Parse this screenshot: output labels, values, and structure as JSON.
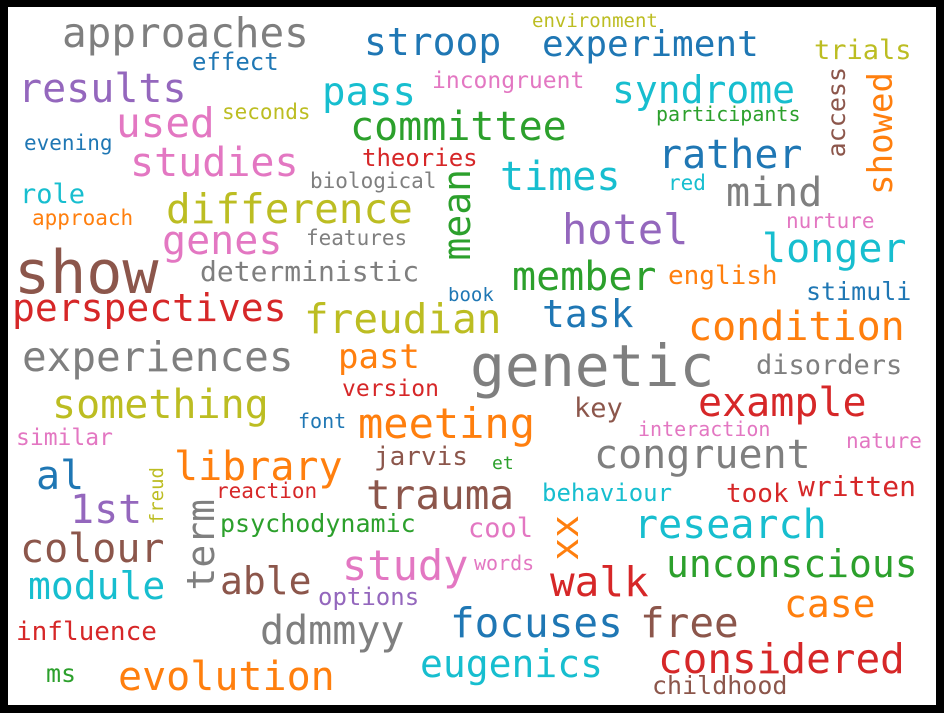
{
  "words": {
    "w001": {
      "text": "approaches",
      "color": "#7f7f7f"
    },
    "w002": {
      "text": "stroop",
      "color": "#1f77b4"
    },
    "w003": {
      "text": "experiment",
      "color": "#1f77b4"
    },
    "w004": {
      "text": "environment",
      "color": "#bcbd22"
    },
    "w005": {
      "text": "trials",
      "color": "#bcbd22"
    },
    "w006": {
      "text": "effect",
      "color": "#1f77b4"
    },
    "w007": {
      "text": "results",
      "color": "#9467bd"
    },
    "w008": {
      "text": "pass",
      "color": "#17becf"
    },
    "w009": {
      "text": "incongruent",
      "color": "#e377c2"
    },
    "w010": {
      "text": "syndrome",
      "color": "#17becf"
    },
    "w011": {
      "text": "access",
      "color": "#8c564b"
    },
    "w012": {
      "text": "showed",
      "color": "#ff7f0e"
    },
    "w013": {
      "text": "seconds",
      "color": "#bcbd22"
    },
    "w014": {
      "text": "participants",
      "color": "#2ca02c"
    },
    "w015": {
      "text": "used",
      "color": "#e377c2"
    },
    "w016": {
      "text": "committee",
      "color": "#2ca02c"
    },
    "w017": {
      "text": "evening",
      "color": "#1f77b4"
    },
    "w018": {
      "text": "rather",
      "color": "#1f77b4"
    },
    "w019": {
      "text": "studies",
      "color": "#e377c2"
    },
    "w020": {
      "text": "theories",
      "color": "#d62728"
    },
    "w021": {
      "text": "times",
      "color": "#17becf"
    },
    "w022": {
      "text": "mind",
      "color": "#7f7f7f"
    },
    "w023": {
      "text": "red",
      "color": "#17becf"
    },
    "w024": {
      "text": "role",
      "color": "#17becf"
    },
    "w025": {
      "text": "biological",
      "color": "#7f7f7f"
    },
    "w026": {
      "text": "mean",
      "color": "#2ca02c"
    },
    "w027": {
      "text": "difference",
      "color": "#bcbd22"
    },
    "w028": {
      "text": "approach",
      "color": "#ff7f0e"
    },
    "w029": {
      "text": "nurture",
      "color": "#e377c2"
    },
    "w030": {
      "text": "hotel",
      "color": "#9467bd"
    },
    "w031": {
      "text": "genes",
      "color": "#e377c2"
    },
    "w032": {
      "text": "features",
      "color": "#7f7f7f"
    },
    "w033": {
      "text": "longer",
      "color": "#17becf"
    },
    "w034": {
      "text": "show",
      "color": "#8c564b"
    },
    "w035": {
      "text": "deterministic",
      "color": "#7f7f7f"
    },
    "w036": {
      "text": "member",
      "color": "#2ca02c"
    },
    "w037": {
      "text": "english",
      "color": "#ff7f0e"
    },
    "w038": {
      "text": "stimuli",
      "color": "#1f77b4"
    },
    "w039": {
      "text": "book",
      "color": "#1f77b4"
    },
    "w040": {
      "text": "perspectives",
      "color": "#d62728"
    },
    "w041": {
      "text": "freudian",
      "color": "#bcbd22"
    },
    "w042": {
      "text": "task",
      "color": "#1f77b4"
    },
    "w043": {
      "text": "condition",
      "color": "#ff7f0e"
    },
    "w044": {
      "text": "experiences",
      "color": "#7f7f7f"
    },
    "w045": {
      "text": "past",
      "color": "#ff7f0e"
    },
    "w046": {
      "text": "genetic",
      "color": "#7f7f7f"
    },
    "w047": {
      "text": "disorders",
      "color": "#7f7f7f"
    },
    "w048": {
      "text": "version",
      "color": "#d62728"
    },
    "w049": {
      "text": "something",
      "color": "#bcbd22"
    },
    "w050": {
      "text": "example",
      "color": "#d62728"
    },
    "w051": {
      "text": "key",
      "color": "#8c564b"
    },
    "w052": {
      "text": "font",
      "color": "#1f77b4"
    },
    "w053": {
      "text": "meeting",
      "color": "#ff7f0e"
    },
    "w054": {
      "text": "interaction",
      "color": "#e377c2"
    },
    "w055": {
      "text": "similar",
      "color": "#e377c2"
    },
    "w056": {
      "text": "nature",
      "color": "#e377c2"
    },
    "w057": {
      "text": "congruent",
      "color": "#7f7f7f"
    },
    "w058": {
      "text": "jarvis",
      "color": "#8c564b"
    },
    "w059": {
      "text": "al",
      "color": "#1f77b4"
    },
    "w060": {
      "text": "library",
      "color": "#ff7f0e"
    },
    "w061": {
      "text": "et",
      "color": "#2ca02c"
    },
    "w062": {
      "text": "freud",
      "color": "#bcbd22"
    },
    "w063": {
      "text": "trauma",
      "color": "#8c564b"
    },
    "w064": {
      "text": "behaviour",
      "color": "#17becf"
    },
    "w065": {
      "text": "took",
      "color": "#d62728"
    },
    "w066": {
      "text": "written",
      "color": "#d62728"
    },
    "w067": {
      "text": "reaction",
      "color": "#d62728"
    },
    "w068": {
      "text": "1st",
      "color": "#9467bd"
    },
    "w069": {
      "text": "term",
      "color": "#7f7f7f"
    },
    "w070": {
      "text": "psychodynamic",
      "color": "#2ca02c"
    },
    "w071": {
      "text": "cool",
      "color": "#e377c2"
    },
    "w072": {
      "text": "xx",
      "color": "#ff7f0e"
    },
    "w073": {
      "text": "research",
      "color": "#17becf"
    },
    "w074": {
      "text": "colour",
      "color": "#8c564b"
    },
    "w075": {
      "text": "study",
      "color": "#e377c2"
    },
    "w076": {
      "text": "unconscious",
      "color": "#2ca02c"
    },
    "w077": {
      "text": "words",
      "color": "#e377c2"
    },
    "w078": {
      "text": "walk",
      "color": "#d62728"
    },
    "w079": {
      "text": "module",
      "color": "#17becf"
    },
    "w080": {
      "text": "able",
      "color": "#8c564b"
    },
    "w081": {
      "text": "options",
      "color": "#9467bd"
    },
    "w082": {
      "text": "case",
      "color": "#ff7f0e"
    },
    "w083": {
      "text": "focuses",
      "color": "#1f77b4"
    },
    "w084": {
      "text": "free",
      "color": "#8c564b"
    },
    "w085": {
      "text": "ddmmyy",
      "color": "#7f7f7f"
    },
    "w086": {
      "text": "influence",
      "color": "#d62728"
    },
    "w087": {
      "text": "eugenics",
      "color": "#17becf"
    },
    "w088": {
      "text": "considered",
      "color": "#d62728"
    },
    "w089": {
      "text": "ms",
      "color": "#2ca02c"
    },
    "w090": {
      "text": "evolution",
      "color": "#ff7f0e"
    },
    "w091": {
      "text": "childhood",
      "color": "#8c564b"
    }
  }
}
